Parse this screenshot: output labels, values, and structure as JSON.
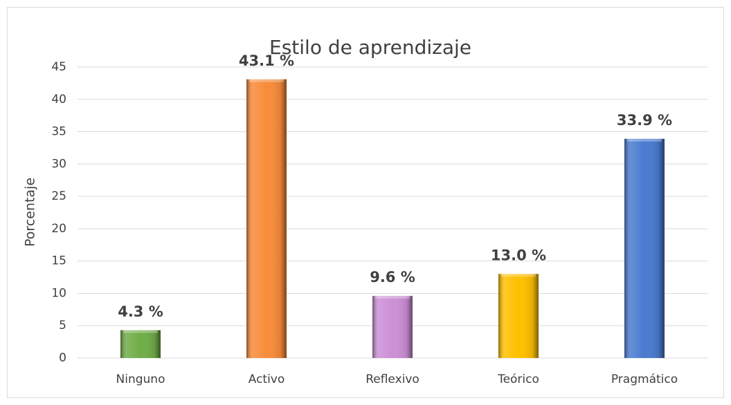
{
  "chart_data": {
    "type": "bar",
    "title": "Estilo de aprendizaje",
    "y_label": "Porcentaje",
    "categories": [
      "Ninguno",
      "Activo",
      "Reflexivo",
      "Teórico",
      "Pragmático"
    ],
    "values": [
      4.3,
      43.1,
      9.6,
      13.0,
      33.9
    ],
    "value_labels": [
      "4.3 %",
      "43.1 %",
      "9.6 %",
      "13.0 %",
      "33.9 %"
    ],
    "colors": [
      "#70ad47",
      "#f98b3a",
      "#cc8fd6",
      "#ffc000",
      "#4a7bd0"
    ],
    "ylim": [
      0,
      45
    ],
    "yticks": [
      0,
      5,
      10,
      15,
      20,
      25,
      30,
      35,
      40,
      45
    ],
    "grid": true
  }
}
